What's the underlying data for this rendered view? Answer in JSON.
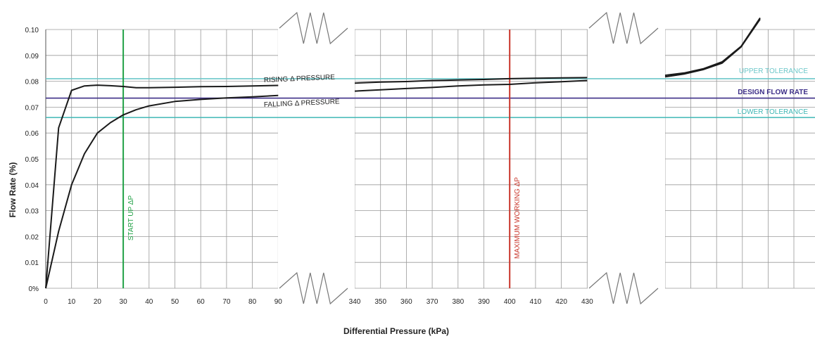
{
  "chart_data": {
    "type": "line",
    "title": "",
    "xlabel": "Differential Pressure (kPa)",
    "ylabel": "Flow Rate (%)",
    "ylim": [
      0,
      0.1
    ],
    "y_ticks": [
      "0%",
      "0.01",
      "0.02",
      "0.03",
      "0.04",
      "0.05",
      "0.06",
      "0.07",
      "0.08",
      "0.09",
      "0.10"
    ],
    "x_segments": [
      {
        "ticks": [
          0,
          10,
          20,
          30,
          40,
          50,
          60,
          70,
          80,
          90
        ]
      },
      {
        "ticks": [
          340,
          350,
          360,
          370,
          380,
          390,
          400,
          410,
          420,
          430
        ]
      },
      {
        "ticks": []
      }
    ],
    "axis_breaks": 2,
    "grid": true,
    "series": [
      {
        "name": "RISING Δ PRESSURE",
        "x": [
          0,
          5,
          10,
          15,
          20,
          25,
          30,
          35,
          40,
          50,
          60,
          70,
          80,
          90,
          340,
          350,
          360,
          370,
          380,
          390,
          400,
          410,
          420,
          430
        ],
        "y": [
          0,
          0.062,
          0.0765,
          0.0782,
          0.0785,
          0.0783,
          0.078,
          0.0775,
          0.0775,
          0.0777,
          0.0779,
          0.078,
          0.0782,
          0.0784,
          0.0793,
          0.0797,
          0.0799,
          0.0803,
          0.0805,
          0.0807,
          0.081,
          0.0812,
          0.0813,
          0.0814
        ],
        "tail": [
          0.0823,
          0.0832,
          0.0848,
          0.0875,
          0.0935,
          0.1045
        ]
      },
      {
        "name": "FALLING Δ PRESSURE",
        "x": [
          0,
          5,
          10,
          15,
          20,
          25,
          30,
          35,
          40,
          50,
          60,
          70,
          80,
          90,
          340,
          350,
          360,
          370,
          380,
          390,
          400,
          410,
          420,
          430
        ],
        "y": [
          0,
          0.022,
          0.04,
          0.052,
          0.06,
          0.064,
          0.067,
          0.069,
          0.0705,
          0.0722,
          0.073,
          0.0736,
          0.074,
          0.0745,
          0.0762,
          0.0767,
          0.0772,
          0.0776,
          0.0782,
          0.0786,
          0.0788,
          0.0794,
          0.0798,
          0.0803
        ],
        "tail": [
          0.0817,
          0.0828,
          0.0845,
          0.087,
          0.0933,
          0.104
        ]
      }
    ],
    "reference_lines": [
      {
        "label": "UPPER TOLERANCE",
        "y": 0.081,
        "color": "#6cc7c9"
      },
      {
        "label": "DESIGN FLOW RATE",
        "y": 0.0735,
        "color": "#3d2f88"
      },
      {
        "label": "LOWER TOLERANCE",
        "y": 0.066,
        "color": "#3fb7b5"
      }
    ],
    "vertical_markers": [
      {
        "label": "START UP ΔP",
        "x": 30,
        "color": "#21a146"
      },
      {
        "label": "MAXIMUM WORKING ΔP",
        "x": 400,
        "color": "#c9352a"
      }
    ]
  }
}
